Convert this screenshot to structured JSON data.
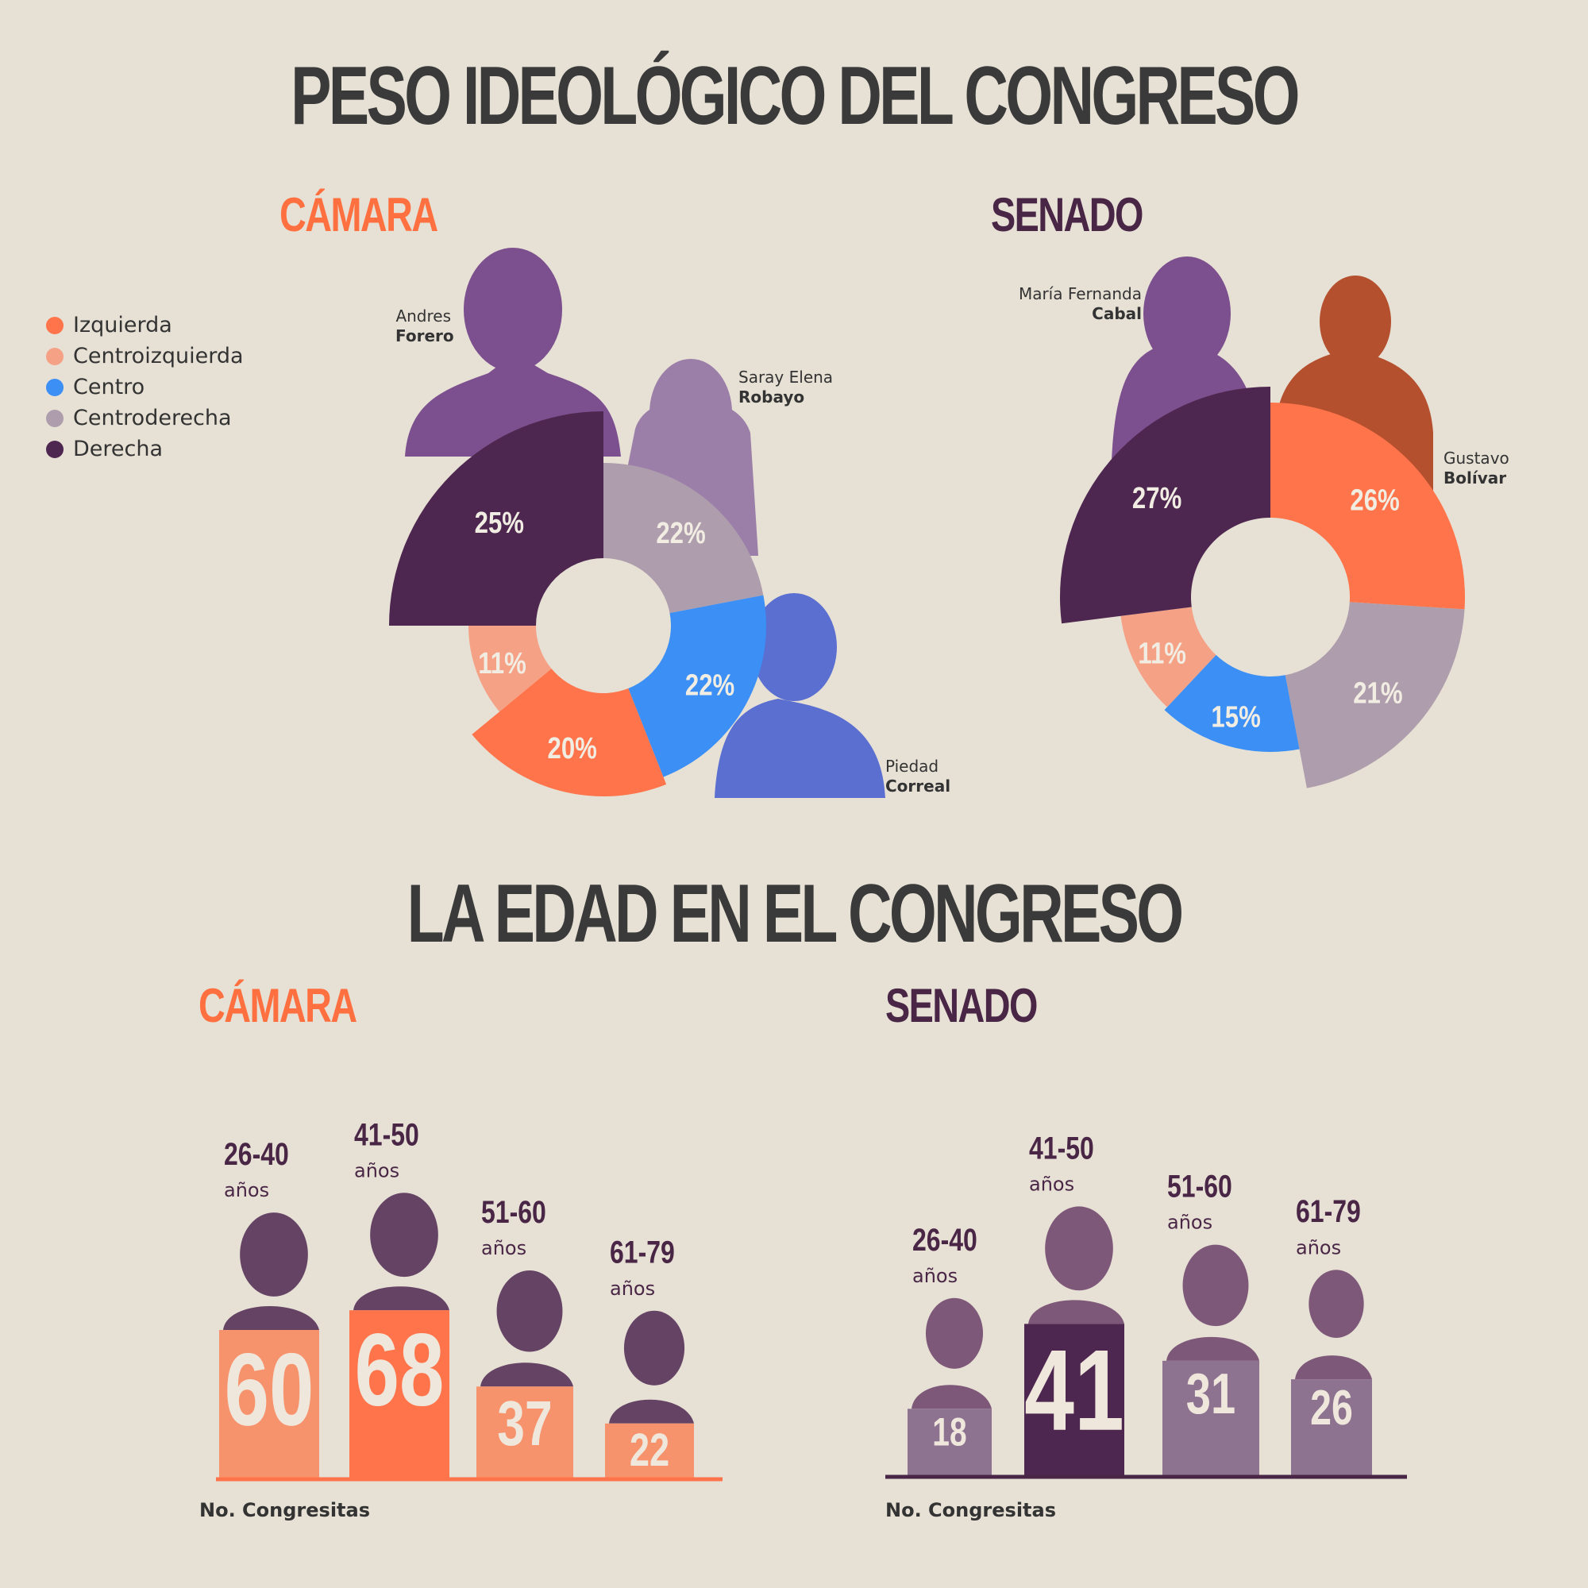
{
  "titles": {
    "ideology": "PESO IDEOLÓGICO DEL CONGRESO",
    "age": "LA EDAD EN EL CONGRESO"
  },
  "colors": {
    "izquierda": "#ff744a",
    "centroizquierda": "#f5a186",
    "centro": "#3b8ff5",
    "centroderecha": "#ae9dac",
    "derecha": "#4e2750",
    "camara_title": "#ff7040",
    "senado_title": "#4a2646"
  },
  "legend": [
    {
      "label": "Izquierda",
      "color": "#ff744a"
    },
    {
      "label": "Centroizquierda",
      "color": "#f5a186"
    },
    {
      "label": "Centro",
      "color": "#3b8ff5"
    },
    {
      "label": "Centroderecha",
      "color": "#ae9dac"
    },
    {
      "label": "Derecha",
      "color": "#4e2750"
    }
  ],
  "people": {
    "forero": {
      "first": "Andres",
      "last": "Forero"
    },
    "robayo": {
      "first": "Saray Elena",
      "last": "Robayo"
    },
    "correal": {
      "first": "Piedad",
      "last": "Correal"
    },
    "cabal": {
      "first": "María Fernanda",
      "last": "Cabal"
    },
    "bolivar": {
      "first": "Gustavo",
      "last": "Bolívar"
    }
  },
  "axis_label": "No. Congresitas",
  "chart_data": [
    {
      "type": "pie",
      "title": "CÁMARA",
      "slices": [
        {
          "label": "Derecha",
          "value": 25,
          "text": "25%"
        },
        {
          "label": "Centroderecha",
          "value": 22,
          "text": "22%"
        },
        {
          "label": "Centro",
          "value": 22,
          "text": "22%"
        },
        {
          "label": "Izquierda",
          "value": 20,
          "text": "20%"
        },
        {
          "label": "Centroizquierda",
          "value": 11,
          "text": "11%"
        }
      ]
    },
    {
      "type": "pie",
      "title": "SENADO",
      "slices": [
        {
          "label": "Izquierda",
          "value": 26,
          "text": "26%"
        },
        {
          "label": "Centroderecha",
          "value": 21,
          "text": "21%"
        },
        {
          "label": "Centro",
          "value": 15,
          "text": "15%"
        },
        {
          "label": "Centroizquierda",
          "value": 11,
          "text": "11%"
        },
        {
          "label": "Derecha",
          "value": 27,
          "text": "27%"
        }
      ]
    },
    {
      "type": "bar",
      "title": "CÁMARA",
      "xlabel": "No. Congresitas",
      "categories": [
        "26-40",
        "41-50",
        "51-60",
        "61-79"
      ],
      "unit": "años",
      "values": [
        60,
        68,
        37,
        22
      ]
    },
    {
      "type": "bar",
      "title": "SENADO",
      "xlabel": "No. Congresitas",
      "categories": [
        "26-40",
        "41-50",
        "51-60",
        "61-79"
      ],
      "unit": "años",
      "values": [
        18,
        41,
        31,
        26
      ]
    }
  ]
}
